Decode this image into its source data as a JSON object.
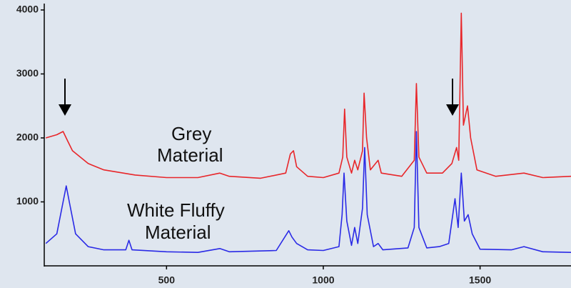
{
  "chart_data": {
    "type": "line",
    "annotations": [
      [
        "Grey",
        "Material"
      ],
      [
        "White Fluffy",
        "Material"
      ]
    ],
    "xlim": [
      110,
      1790
    ],
    "xticks": [
      500,
      1000,
      1500
    ],
    "ylim": [
      0,
      4100
    ],
    "yticks": [
      1000,
      2000,
      3000,
      4000
    ],
    "grid": false,
    "series": [
      {
        "name": "Grey Material",
        "color": "#e8262a",
        "x": [
          115,
          150,
          170,
          185,
          200,
          250,
          300,
          400,
          500,
          600,
          670,
          700,
          800,
          880,
          895,
          905,
          915,
          950,
          1000,
          1050,
          1062,
          1068,
          1075,
          1090,
          1100,
          1110,
          1125,
          1130,
          1138,
          1150,
          1175,
          1185,
          1250,
          1290,
          1297,
          1305,
          1330,
          1380,
          1410,
          1425,
          1432,
          1440,
          1447,
          1460,
          1470,
          1490,
          1550,
          1640,
          1700,
          1790
        ],
        "values": [
          2000,
          2050,
          2100,
          1950,
          1800,
          1600,
          1500,
          1420,
          1380,
          1380,
          1450,
          1400,
          1370,
          1450,
          1750,
          1800,
          1550,
          1400,
          1380,
          1450,
          1700,
          2450,
          1700,
          1450,
          1650,
          1500,
          1800,
          2700,
          2000,
          1500,
          1650,
          1450,
          1400,
          1650,
          2850,
          1700,
          1450,
          1450,
          1600,
          1850,
          1650,
          3950,
          2200,
          2500,
          2000,
          1500,
          1400,
          1450,
          1380,
          1400
        ]
      },
      {
        "name": "White Fluffy Material",
        "color": "#2a2ae6",
        "x": [
          115,
          150,
          170,
          180,
          190,
          210,
          250,
          300,
          370,
          380,
          390,
          500,
          600,
          670,
          700,
          850,
          890,
          900,
          915,
          950,
          1000,
          1050,
          1060,
          1066,
          1075,
          1090,
          1100,
          1110,
          1125,
          1132,
          1140,
          1160,
          1175,
          1190,
          1270,
          1290,
          1297,
          1305,
          1330,
          1370,
          1400,
          1420,
          1430,
          1440,
          1450,
          1462,
          1475,
          1500,
          1600,
          1640,
          1700,
          1790
        ],
        "values": [
          350,
          500,
          1000,
          1250,
          1000,
          500,
          300,
          250,
          250,
          400,
          250,
          220,
          210,
          270,
          220,
          240,
          550,
          450,
          350,
          250,
          240,
          300,
          800,
          1450,
          700,
          320,
          600,
          350,
          900,
          1850,
          800,
          300,
          350,
          250,
          280,
          600,
          2100,
          600,
          280,
          300,
          350,
          1050,
          600,
          1450,
          700,
          800,
          500,
          260,
          250,
          300,
          220,
          210
        ]
      }
    ]
  }
}
